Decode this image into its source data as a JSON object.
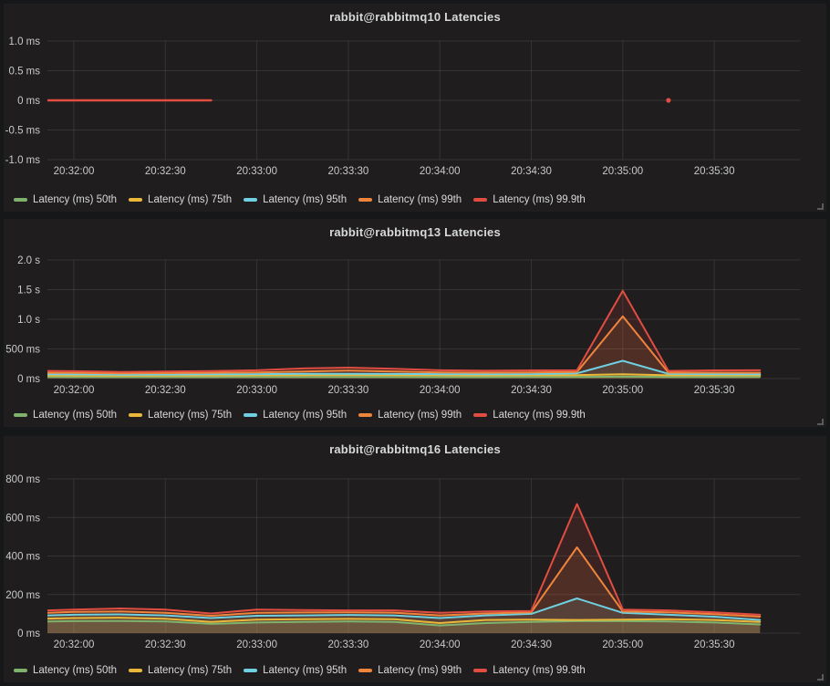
{
  "page": {
    "background": "#161719",
    "panel_background": "#1f1d1d",
    "grid_color": "rgba(255,255,255,0.10)",
    "tick_label_color": "#c9cacb",
    "title_color": "#d8d9da",
    "legend_text_color": "#d8d9da"
  },
  "icons": {
    "resize_handle": "diagonal-resize-grip"
  },
  "chart_data": [
    {
      "type": "line",
      "title": "rabbit@rabbitmq10 Latencies",
      "xlabel": "",
      "ylabel": "",
      "grid": true,
      "legend_position": "bottom",
      "y_unit": "ms",
      "y_range": [
        -1.0,
        1.0
      ],
      "y_ticks": [
        {
          "label": "1.0 ms",
          "value": 1.0
        },
        {
          "label": "0.5 ms",
          "value": 0.5
        },
        {
          "label": "0 ms",
          "value": 0
        },
        {
          "label": "-0.5 ms",
          "value": -0.5
        },
        {
          "label": "-1.0 ms",
          "value": -1.0
        }
      ],
      "x_ticks": [
        "20:32:00",
        "20:32:30",
        "20:33:00",
        "20:33:30",
        "20:34:00",
        "20:34:30",
        "20:35:00",
        "20:35:30"
      ],
      "x_tick_times": [
        0,
        30,
        60,
        90,
        120,
        150,
        180,
        210
      ],
      "x_range_seconds": [
        -9,
        238
      ],
      "line_width": 2.5,
      "series": [
        {
          "name": "Latency (ms) 50th",
          "color": "#7EB26D",
          "points": []
        },
        {
          "name": "Latency (ms) 75th",
          "color": "#EAB839",
          "points": []
        },
        {
          "name": "Latency (ms) 95th",
          "color": "#6ED0E0",
          "points": []
        },
        {
          "name": "Latency (ms) 99th",
          "color": "#EF843C",
          "points": []
        },
        {
          "name": "Latency (ms) 99.9th",
          "color": "#E24D42",
          "points": [
            [
              -9,
              0
            ],
            [
              45,
              0
            ],
            null,
            [
              195,
              0
            ]
          ]
        }
      ]
    },
    {
      "type": "line",
      "title": "rabbit@rabbitmq13 Latencies",
      "xlabel": "",
      "ylabel": "",
      "grid": true,
      "legend_position": "bottom",
      "y_unit": "ms",
      "y_range": [
        0,
        2000
      ],
      "y_ticks": [
        {
          "label": "2.0 s",
          "value": 2000
        },
        {
          "label": "1.5 s",
          "value": 1500
        },
        {
          "label": "1.0 s",
          "value": 1000
        },
        {
          "label": "500 ms",
          "value": 500
        },
        {
          "label": "0 ms",
          "value": 0
        }
      ],
      "x_ticks": [
        "20:32:00",
        "20:32:30",
        "20:33:00",
        "20:33:30",
        "20:34:00",
        "20:34:30",
        "20:35:00",
        "20:35:30"
      ],
      "x_tick_times": [
        0,
        30,
        60,
        90,
        120,
        150,
        180,
        210
      ],
      "x_range_seconds": [
        -9,
        238
      ],
      "line_width": 2,
      "times": [
        -9,
        0,
        15,
        30,
        45,
        60,
        75,
        90,
        105,
        120,
        135,
        150,
        165,
        180,
        195,
        210,
        225
      ],
      "series": [
        {
          "name": "Latency (ms) 50th",
          "color": "#7EB26D",
          "values": [
            30,
            28,
            27,
            28,
            28,
            29,
            30,
            30,
            29,
            28,
            28,
            29,
            30,
            32,
            30,
            30,
            31
          ]
        },
        {
          "name": "Latency (ms) 75th",
          "color": "#EAB839",
          "values": [
            52,
            50,
            48,
            50,
            52,
            55,
            58,
            60,
            57,
            55,
            54,
            55,
            58,
            72,
            55,
            56,
            55
          ]
        },
        {
          "name": "Latency (ms) 95th",
          "color": "#6ED0E0",
          "values": [
            72,
            70,
            66,
            68,
            72,
            76,
            80,
            82,
            79,
            76,
            74,
            76,
            90,
            300,
            80,
            75,
            73
          ]
        },
        {
          "name": "Latency (ms) 99th",
          "color": "#EF843C",
          "values": [
            98,
            95,
            88,
            92,
            98,
            105,
            120,
            135,
            118,
            105,
            100,
            105,
            110,
            1050,
            100,
            100,
            98
          ]
        },
        {
          "name": "Latency (ms) 99.9th",
          "color": "#E24D42",
          "values": [
            130,
            125,
            112,
            118,
            128,
            140,
            170,
            185,
            165,
            140,
            132,
            138,
            140,
            1480,
            130,
            138,
            140
          ]
        }
      ]
    },
    {
      "type": "line",
      "title": "rabbit@rabbitmq16 Latencies",
      "xlabel": "",
      "ylabel": "",
      "grid": true,
      "legend_position": "bottom",
      "y_unit": "ms",
      "y_range": [
        0,
        800
      ],
      "y_ticks": [
        {
          "label": "800 ms",
          "value": 800
        },
        {
          "label": "600 ms",
          "value": 600
        },
        {
          "label": "400 ms",
          "value": 400
        },
        {
          "label": "200 ms",
          "value": 200
        },
        {
          "label": "0 ms",
          "value": 0
        }
      ],
      "x_ticks": [
        "20:32:00",
        "20:32:30",
        "20:33:00",
        "20:33:30",
        "20:34:00",
        "20:34:30",
        "20:35:00",
        "20:35:30"
      ],
      "x_tick_times": [
        0,
        30,
        60,
        90,
        120,
        150,
        180,
        210
      ],
      "x_range_seconds": [
        -9,
        238
      ],
      "line_width": 2,
      "times": [
        -9,
        0,
        15,
        30,
        45,
        60,
        75,
        90,
        105,
        120,
        135,
        150,
        165,
        180,
        195,
        210,
        225
      ],
      "series": [
        {
          "name": "Latency (ms) 50th",
          "color": "#7EB26D",
          "values": [
            60,
            62,
            63,
            60,
            48,
            55,
            58,
            60,
            58,
            40,
            52,
            58,
            62,
            62,
            60,
            55,
            45
          ]
        },
        {
          "name": "Latency (ms) 75th",
          "color": "#EAB839",
          "values": [
            75,
            78,
            80,
            75,
            58,
            70,
            72,
            74,
            72,
            52,
            68,
            70,
            68,
            70,
            72,
            68,
            58
          ]
        },
        {
          "name": "Latency (ms) 95th",
          "color": "#6ED0E0",
          "values": [
            92,
            95,
            97,
            92,
            78,
            90,
            92,
            94,
            92,
            78,
            92,
            100,
            180,
            105,
            95,
            85,
            68
          ]
        },
        {
          "name": "Latency (ms) 99th",
          "color": "#EF843C",
          "values": [
            105,
            110,
            112,
            105,
            90,
            105,
            107,
            108,
            106,
            92,
            102,
            108,
            445,
            112,
            108,
            98,
            85
          ]
        },
        {
          "name": "Latency (ms) 99.9th",
          "color": "#E24D42",
          "values": [
            118,
            122,
            128,
            122,
            102,
            122,
            120,
            118,
            118,
            105,
            112,
            115,
            670,
            122,
            118,
            108,
            95
          ]
        }
      ]
    }
  ]
}
